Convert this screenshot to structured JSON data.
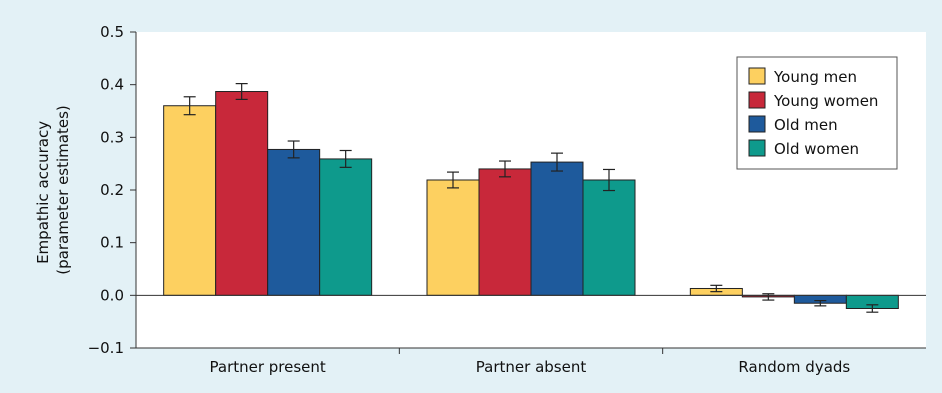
{
  "chart_data": {
    "type": "bar",
    "title": "",
    "xlabel": "",
    "ylabel": [
      "Empathic accuracy",
      "(parameter estimates)"
    ],
    "ylim": [
      -0.1,
      0.5
    ],
    "yticks": [
      -0.1,
      0.0,
      0.1,
      0.2,
      0.3,
      0.4,
      0.5
    ],
    "ytick_labels": [
      "−0.1",
      "0.0",
      "0.1",
      "0.2",
      "0.3",
      "0.4",
      "0.5"
    ],
    "categories": [
      "Partner present",
      "Partner absent",
      "Random dyads"
    ],
    "series": [
      {
        "name": "Young men",
        "color": "#fdd060",
        "values": [
          0.36,
          0.219,
          0.013
        ],
        "errors": [
          0.017,
          0.015,
          0.006
        ]
      },
      {
        "name": "Young women",
        "color": "#c8283a",
        "values": [
          0.387,
          0.24,
          -0.003
        ],
        "errors": [
          0.015,
          0.015,
          0.006
        ]
      },
      {
        "name": "Old men",
        "color": "#1e5a9c",
        "values": [
          0.277,
          0.253,
          -0.015
        ],
        "errors": [
          0.016,
          0.017,
          0.005
        ]
      },
      {
        "name": "Old women",
        "color": "#0e9a8c",
        "values": [
          0.259,
          0.219,
          -0.025
        ],
        "errors": [
          0.016,
          0.02,
          0.007
        ]
      }
    ],
    "legend_position": "top-right",
    "grid": false
  }
}
